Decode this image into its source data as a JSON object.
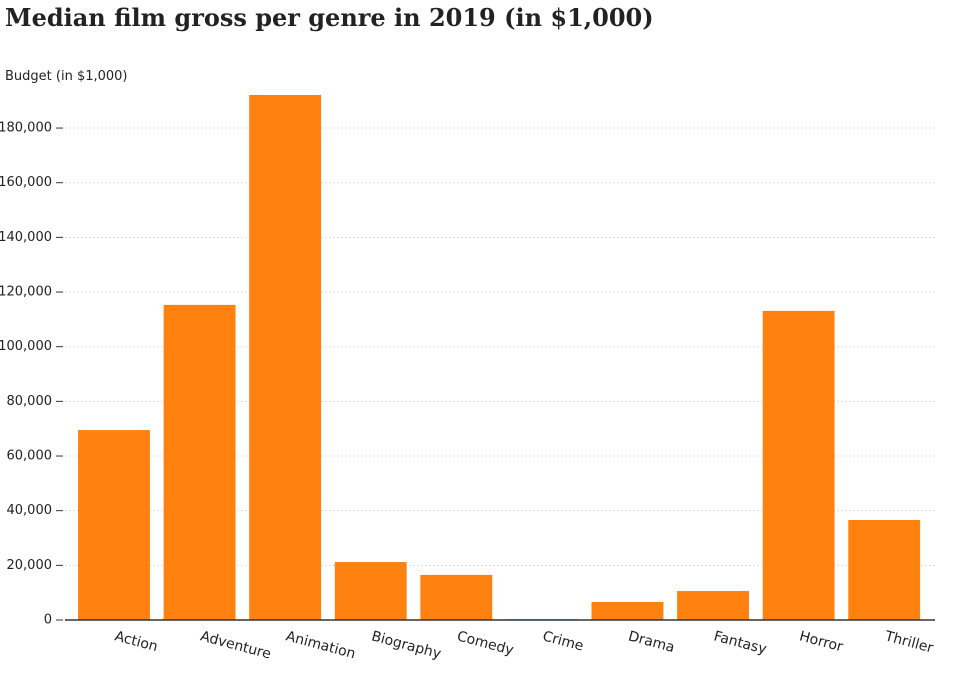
{
  "chart_data": {
    "type": "bar",
    "title": "Median film gross per genre in 2019 (in $1,000)",
    "y_label": "Budget (in $1,000)",
    "categories": [
      "Action",
      "Adventure",
      "Animation",
      "Biography",
      "Comedy",
      "Crime",
      "Drama",
      "Fantasy",
      "Horror",
      "Thriller"
    ],
    "values": [
      69500,
      115300,
      192100,
      21200,
      16500,
      300,
      6600,
      10600,
      113100,
      36600
    ],
    "color": "#ff8210",
    "ylim": [
      0,
      195000
    ],
    "yticks": [
      {
        "value": 0,
        "label": "0"
      },
      {
        "value": 20000,
        "label": "20,000"
      },
      {
        "value": 40000,
        "label": "40,000"
      },
      {
        "value": 60000,
        "label": "60,000"
      },
      {
        "value": 80000,
        "label": "80,000"
      },
      {
        "value": 100000,
        "label": "100,000"
      },
      {
        "value": 120000,
        "label": "120,000"
      },
      {
        "value": 140000,
        "label": "140,000"
      },
      {
        "value": 160000,
        "label": "160,000"
      },
      {
        "value": 180000,
        "label": "180,000"
      }
    ],
    "grid": true
  }
}
